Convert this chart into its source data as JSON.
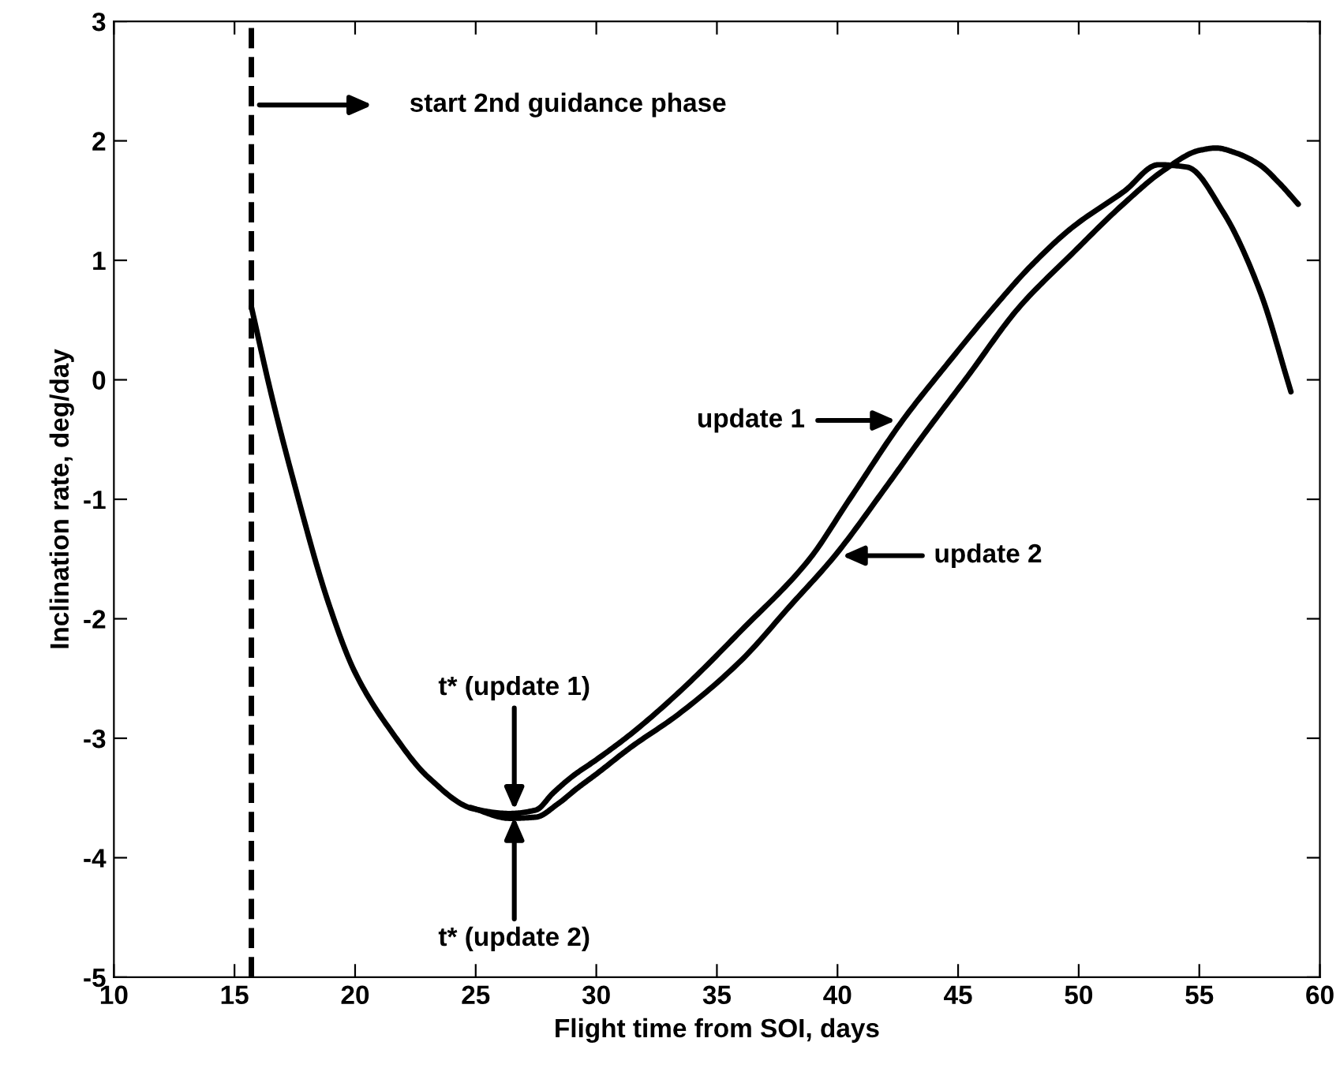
{
  "chart_data": {
    "type": "line",
    "xlabel": "Flight time from SOI, days",
    "ylabel": "Inclination rate, deg/day",
    "xlim": [
      10,
      60
    ],
    "ylim": [
      -5,
      3
    ],
    "xticks": [
      10,
      15,
      20,
      25,
      30,
      35,
      40,
      45,
      50,
      55,
      60
    ],
    "yticks": [
      -5,
      -4,
      -3,
      -2,
      -1,
      0,
      1,
      2,
      3
    ],
    "grid": false,
    "legend": false,
    "line_style": "solid",
    "marker": "none",
    "series": [
      {
        "color": "#000000",
        "x": [
          15.7,
          16.5,
          17.4,
          18.9,
          20,
          21.6,
          23,
          24.9,
          26.4,
          27.5,
          28.2,
          29,
          30,
          31.4,
          33.4,
          36,
          38.8,
          40.5,
          42.7,
          44.5,
          46.5,
          48,
          49.7,
          51.9,
          53.3,
          54.5,
          56,
          57.5,
          58.8
        ],
        "values": [
          0.61,
          -0.1,
          -0.81,
          -1.87,
          -2.45,
          -2.97,
          -3.32,
          -3.59,
          -3.63,
          -3.6,
          -3.46,
          -3.32,
          -3.18,
          -2.97,
          -2.62,
          -2.1,
          -1.51,
          -1.0,
          -0.34,
          0.12,
          0.61,
          0.95,
          1.27,
          1.58,
          1.8,
          1.78,
          1.4,
          0.75,
          -0.1
        ]
      },
      {
        "color": "#000000",
        "x": [
          24.8,
          26.4,
          27.5,
          28.4,
          29.2,
          30,
          31.4,
          33.4,
          36,
          38,
          39.9,
          42,
          43.5,
          45.4,
          47.5,
          49.7,
          51.9,
          53.5,
          55,
          55.7,
          56.5,
          57.5,
          58.3,
          59.1
        ],
        "values": [
          -3.58,
          -3.67,
          -3.66,
          -3.55,
          -3.42,
          -3.3,
          -3.08,
          -2.8,
          -2.35,
          -1.9,
          -1.47,
          -0.9,
          -0.48,
          0.03,
          0.6,
          1.05,
          1.48,
          1.75,
          1.92,
          1.94,
          1.9,
          1.8,
          1.65,
          1.47
        ]
      }
    ],
    "ref_lines": [
      {
        "axis": "x",
        "value": 15.7,
        "color": "#000000",
        "line_style": "dashed"
      }
    ],
    "annotations": [
      "start 2nd guidance phase",
      {
        "text": "t* (update 1)",
        "x": 26.6,
        "y": -3.6
      },
      {
        "text": "t* (update 2)",
        "x": 26.6,
        "y": -3.66
      },
      "update 1",
      "update 2"
    ]
  }
}
